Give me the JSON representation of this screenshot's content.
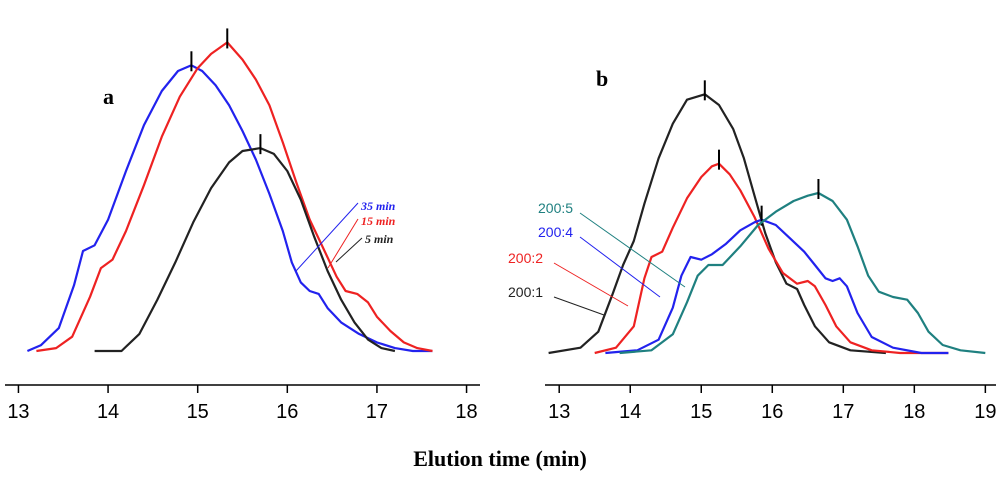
{
  "xlabel": "Elution time (min)",
  "chart_data": [
    {
      "type": "line",
      "panel": "a",
      "xlabel": "Elution time (min)",
      "ylabel": "",
      "xlim": [
        12.85,
        18.15
      ],
      "ylim": [
        0,
        1.05
      ],
      "x_ticks": [
        "13",
        "14",
        "15",
        "16",
        "17",
        "18"
      ],
      "grid": false,
      "series": [
        {
          "name": "35 min",
          "color": "#2222ee",
          "peak_marker": [
            14.93,
            1.0
          ],
          "points": [
            [
              13.1,
              0.0
            ],
            [
              13.25,
              0.02
            ],
            [
              13.45,
              0.08
            ],
            [
              13.62,
              0.23
            ],
            [
              13.72,
              0.35
            ],
            [
              13.85,
              0.37
            ],
            [
              14.0,
              0.46
            ],
            [
              14.2,
              0.63
            ],
            [
              14.4,
              0.79
            ],
            [
              14.6,
              0.91
            ],
            [
              14.78,
              0.98
            ],
            [
              14.93,
              1.0
            ],
            [
              15.05,
              0.98
            ],
            [
              15.2,
              0.93
            ],
            [
              15.35,
              0.86
            ],
            [
              15.5,
              0.77
            ],
            [
              15.65,
              0.67
            ],
            [
              15.8,
              0.55
            ],
            [
              15.95,
              0.42
            ],
            [
              16.05,
              0.31
            ],
            [
              16.15,
              0.24
            ],
            [
              16.25,
              0.21
            ],
            [
              16.35,
              0.2
            ],
            [
              16.45,
              0.15
            ],
            [
              16.6,
              0.1
            ],
            [
              16.8,
              0.06
            ],
            [
              17.0,
              0.03
            ],
            [
              17.2,
              0.01
            ],
            [
              17.4,
              0.0
            ],
            [
              17.62,
              0.0
            ]
          ]
        },
        {
          "name": "15 min",
          "color": "#ee2222",
          "peak_marker": [
            15.33,
            1.08
          ],
          "points": [
            [
              13.2,
              0.0
            ],
            [
              13.42,
              0.01
            ],
            [
              13.6,
              0.05
            ],
            [
              13.8,
              0.19
            ],
            [
              13.92,
              0.29
            ],
            [
              14.05,
              0.32
            ],
            [
              14.2,
              0.42
            ],
            [
              14.4,
              0.58
            ],
            [
              14.6,
              0.75
            ],
            [
              14.8,
              0.89
            ],
            [
              15.0,
              0.99
            ],
            [
              15.15,
              1.04
            ],
            [
              15.33,
              1.08
            ],
            [
              15.5,
              1.02
            ],
            [
              15.65,
              0.95
            ],
            [
              15.8,
              0.86
            ],
            [
              15.95,
              0.73
            ],
            [
              16.1,
              0.59
            ],
            [
              16.25,
              0.46
            ],
            [
              16.4,
              0.36
            ],
            [
              16.55,
              0.26
            ],
            [
              16.65,
              0.21
            ],
            [
              16.78,
              0.2
            ],
            [
              16.9,
              0.17
            ],
            [
              17.0,
              0.12
            ],
            [
              17.15,
              0.07
            ],
            [
              17.3,
              0.03
            ],
            [
              17.45,
              0.01
            ],
            [
              17.62,
              0.0
            ]
          ]
        },
        {
          "name": "5 min",
          "color": "#222222",
          "peak_marker": [
            15.7,
            0.71
          ],
          "points": [
            [
              13.85,
              0.0
            ],
            [
              14.15,
              0.0
            ],
            [
              14.35,
              0.06
            ],
            [
              14.55,
              0.18
            ],
            [
              14.75,
              0.31
            ],
            [
              14.95,
              0.45
            ],
            [
              15.15,
              0.57
            ],
            [
              15.35,
              0.66
            ],
            [
              15.5,
              0.7
            ],
            [
              15.7,
              0.71
            ],
            [
              15.85,
              0.69
            ],
            [
              16.0,
              0.63
            ],
            [
              16.15,
              0.53
            ],
            [
              16.3,
              0.4
            ],
            [
              16.45,
              0.28
            ],
            [
              16.6,
              0.18
            ],
            [
              16.75,
              0.1
            ],
            [
              16.9,
              0.04
            ],
            [
              17.05,
              0.01
            ],
            [
              17.2,
              0.0
            ]
          ]
        }
      ],
      "legend_entries": [
        "35 min",
        "15 min",
        "5 min"
      ]
    },
    {
      "type": "line",
      "panel": "b",
      "xlabel": "Elution time (min)",
      "ylabel": "",
      "xlim": [
        12.8,
        19.15
      ],
      "ylim": [
        0,
        1.05
      ],
      "x_ticks": [
        "13",
        "14",
        "15",
        "16",
        "17",
        "18",
        "19"
      ],
      "grid": false,
      "series": [
        {
          "name": "200:1",
          "color": "#222222",
          "peak_marker": [
            15.05,
            0.97
          ],
          "points": [
            [
              12.85,
              0.0
            ],
            [
              13.3,
              0.02
            ],
            [
              13.55,
              0.08
            ],
            [
              13.75,
              0.22
            ],
            [
              13.9,
              0.33
            ],
            [
              14.05,
              0.42
            ],
            [
              14.2,
              0.56
            ],
            [
              14.4,
              0.73
            ],
            [
              14.6,
              0.86
            ],
            [
              14.8,
              0.95
            ],
            [
              15.05,
              0.97
            ],
            [
              15.25,
              0.93
            ],
            [
              15.45,
              0.84
            ],
            [
              15.6,
              0.73
            ],
            [
              15.75,
              0.59
            ],
            [
              15.9,
              0.45
            ],
            [
              16.05,
              0.34
            ],
            [
              16.2,
              0.26
            ],
            [
              16.35,
              0.24
            ],
            [
              16.45,
              0.18
            ],
            [
              16.6,
              0.1
            ],
            [
              16.8,
              0.04
            ],
            [
              17.1,
              0.01
            ],
            [
              17.6,
              0.0
            ]
          ]
        },
        {
          "name": "200:2",
          "color": "#ee2222",
          "peak_marker": [
            15.25,
            0.71
          ],
          "points": [
            [
              13.5,
              0.0
            ],
            [
              13.8,
              0.02
            ],
            [
              14.05,
              0.1
            ],
            [
              14.2,
              0.28
            ],
            [
              14.3,
              0.36
            ],
            [
              14.45,
              0.38
            ],
            [
              14.6,
              0.47
            ],
            [
              14.8,
              0.58
            ],
            [
              15.0,
              0.66
            ],
            [
              15.15,
              0.7
            ],
            [
              15.25,
              0.71
            ],
            [
              15.4,
              0.67
            ],
            [
              15.55,
              0.61
            ],
            [
              15.75,
              0.51
            ],
            [
              15.95,
              0.39
            ],
            [
              16.15,
              0.3
            ],
            [
              16.35,
              0.26
            ],
            [
              16.5,
              0.27
            ],
            [
              16.6,
              0.25
            ],
            [
              16.75,
              0.18
            ],
            [
              16.9,
              0.1
            ],
            [
              17.1,
              0.04
            ],
            [
              17.4,
              0.01
            ],
            [
              17.8,
              0.0
            ],
            [
              18.2,
              0.0
            ],
            [
              18.48,
              0.0
            ]
          ]
        },
        {
          "name": "200:4",
          "color": "#2222ee",
          "peak_marker": [
            15.85,
            0.5
          ],
          "points": [
            [
              13.65,
              0.0
            ],
            [
              14.1,
              0.01
            ],
            [
              14.4,
              0.05
            ],
            [
              14.6,
              0.17
            ],
            [
              14.72,
              0.29
            ],
            [
              14.85,
              0.36
            ],
            [
              15.0,
              0.35
            ],
            [
              15.15,
              0.37
            ],
            [
              15.35,
              0.41
            ],
            [
              15.55,
              0.46
            ],
            [
              15.75,
              0.49
            ],
            [
              15.85,
              0.5
            ],
            [
              16.05,
              0.48
            ],
            [
              16.25,
              0.43
            ],
            [
              16.45,
              0.38
            ],
            [
              16.6,
              0.33
            ],
            [
              16.75,
              0.28
            ],
            [
              16.85,
              0.27
            ],
            [
              16.95,
              0.28
            ],
            [
              17.05,
              0.25
            ],
            [
              17.2,
              0.15
            ],
            [
              17.4,
              0.06
            ],
            [
              17.7,
              0.02
            ],
            [
              18.1,
              0.0
            ],
            [
              18.48,
              0.0
            ]
          ]
        },
        {
          "name": "200:5",
          "color": "#1f8080",
          "peak_marker": [
            16.65,
            0.6
          ],
          "points": [
            [
              13.85,
              0.0
            ],
            [
              14.3,
              0.01
            ],
            [
              14.6,
              0.07
            ],
            [
              14.8,
              0.19
            ],
            [
              14.95,
              0.29
            ],
            [
              15.1,
              0.33
            ],
            [
              15.3,
              0.33
            ],
            [
              15.55,
              0.4
            ],
            [
              15.8,
              0.48
            ],
            [
              16.05,
              0.53
            ],
            [
              16.3,
              0.57
            ],
            [
              16.5,
              0.59
            ],
            [
              16.65,
              0.6
            ],
            [
              16.85,
              0.57
            ],
            [
              17.05,
              0.5
            ],
            [
              17.2,
              0.4
            ],
            [
              17.35,
              0.29
            ],
            [
              17.5,
              0.23
            ],
            [
              17.7,
              0.21
            ],
            [
              17.9,
              0.2
            ],
            [
              18.05,
              0.15
            ],
            [
              18.2,
              0.08
            ],
            [
              18.4,
              0.03
            ],
            [
              18.65,
              0.01
            ],
            [
              19.0,
              0.0
            ]
          ]
        }
      ],
      "legend_entries": [
        "200:5",
        "200:4",
        "200:2",
        "200:1"
      ]
    }
  ]
}
